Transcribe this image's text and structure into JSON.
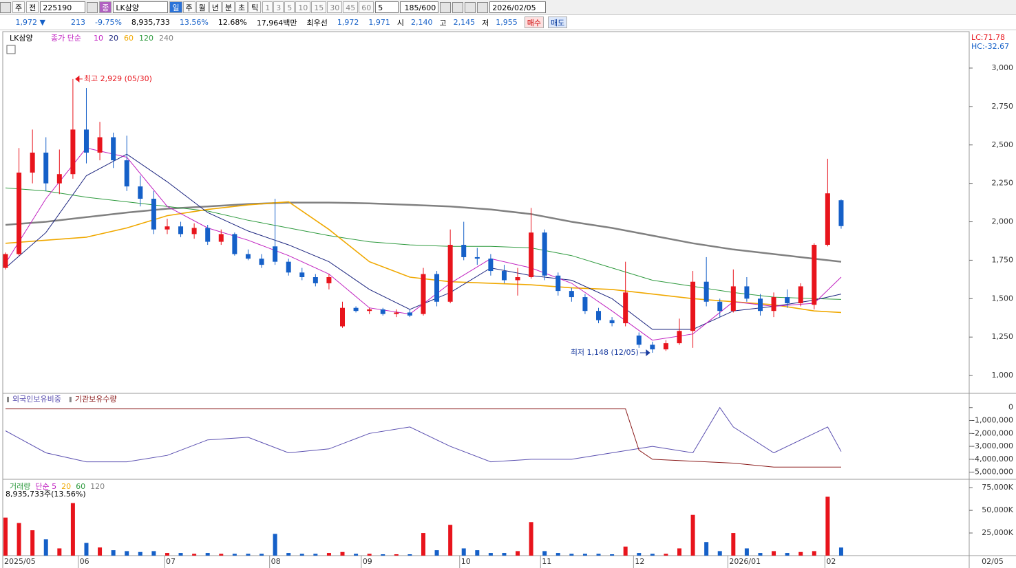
{
  "toolbar": {
    "period": "주",
    "prev": "전",
    "code": "225190",
    "kind": "종",
    "name": "LK삼양",
    "units": [
      "일",
      "주",
      "월",
      "년",
      "분",
      "초",
      "틱"
    ],
    "nums": [
      "1",
      "3",
      "5",
      "10",
      "15",
      "30",
      "45",
      "60"
    ],
    "step": "5",
    "count": "185/600",
    "date": "2026/02/05"
  },
  "info": {
    "price": "1,972 ▼",
    "change": "213",
    "rate": "-9.75%",
    "volume": "8,935,733",
    "turnover": "13.56%",
    "ratio": "12.68%",
    "amount": "17,964백만",
    "best": "최우선",
    "ask": "1,972",
    "bid": "1,971",
    "open_label": "시",
    "open": "2,140",
    "high_label": "고",
    "high": "2,145",
    "low_label": "저",
    "low": "1,955",
    "buy": "매수",
    "sell": "매도"
  },
  "chart_data": [
    {
      "type": "candlestick",
      "legend_title": "LK삼양",
      "ma_label": "종가 단순",
      "lc": "LC:71.78",
      "hc": "HC:-32.67",
      "open": [
        1700,
        1790,
        2320,
        2450,
        2250,
        2310,
        2600,
        2450,
        2550,
        2400,
        2230,
        2150,
        1950,
        1970,
        1920,
        1960,
        1870,
        1920,
        1790,
        1760,
        1840,
        1740,
        1670,
        1640,
        1600,
        1320,
        1440,
        1420,
        1430,
        1400,
        1410,
        1400,
        1660,
        1480,
        1850,
        1770,
        1760,
        1680,
        1620,
        1640,
        1930,
        1650,
        1550,
        1510,
        1420,
        1360,
        1340,
        1260,
        1200,
        1170,
        1210,
        1290,
        1610,
        1480,
        1420,
        1580,
        1500,
        1420,
        1510,
        1470,
        1460,
        1850,
        2140
      ],
      "high": [
        1800,
        2480,
        2600,
        2550,
        2470,
        2929,
        2870,
        2650,
        2580,
        2560,
        2300,
        2200,
        2020,
        2000,
        1990,
        1980,
        1950,
        1930,
        1820,
        1790,
        2150,
        1760,
        1700,
        1660,
        1660,
        1480,
        1450,
        1440,
        1440,
        1430,
        1430,
        1700,
        1680,
        1950,
        2000,
        1830,
        1790,
        1720,
        1700,
        2090,
        1950,
        1670,
        1570,
        1530,
        1440,
        1380,
        1740,
        1280,
        1220,
        1230,
        1370,
        1680,
        1770,
        1500,
        1690,
        1640,
        1530,
        1540,
        1560,
        1600,
        1860,
        2410,
        2145
      ],
      "low": [
        1690,
        1780,
        2250,
        2200,
        2180,
        2280,
        2380,
        2400,
        2350,
        2200,
        2100,
        1920,
        1920,
        1900,
        1890,
        1850,
        1850,
        1780,
        1750,
        1700,
        1720,
        1650,
        1620,
        1580,
        1560,
        1310,
        1410,
        1400,
        1390,
        1380,
        1380,
        1390,
        1450,
        1470,
        1750,
        1720,
        1650,
        1600,
        1520,
        1630,
        1620,
        1520,
        1480,
        1400,
        1340,
        1320,
        1320,
        1180,
        1148,
        1160,
        1200,
        1180,
        1450,
        1380,
        1410,
        1480,
        1390,
        1380,
        1440,
        1450,
        1430,
        1840,
        1955
      ],
      "close": [
        1790,
        2320,
        2450,
        2250,
        2310,
        2600,
        2450,
        2550,
        2400,
        2230,
        2150,
        1950,
        1970,
        1920,
        1960,
        1870,
        1920,
        1790,
        1760,
        1720,
        1740,
        1670,
        1640,
        1600,
        1640,
        1440,
        1420,
        1430,
        1400,
        1410,
        1390,
        1660,
        1480,
        1850,
        1770,
        1760,
        1680,
        1620,
        1640,
        1930,
        1650,
        1550,
        1510,
        1420,
        1360,
        1340,
        1540,
        1200,
        1170,
        1210,
        1290,
        1610,
        1480,
        1420,
        1580,
        1500,
        1420,
        1510,
        1470,
        1580,
        1850,
        2185,
        1972
      ],
      "up_color": "#e8141c",
      "down_color": "#1560c8",
      "series": [
        {
          "name": "10",
          "color": "#c020c0",
          "x": [
            0,
            3,
            6,
            9,
            12,
            15,
            18,
            21,
            24,
            27,
            30,
            33,
            36,
            39,
            42,
            45,
            48,
            51,
            54,
            57,
            60,
            62
          ],
          "values": [
            1730,
            2150,
            2480,
            2420,
            2100,
            1960,
            1880,
            1780,
            1660,
            1440,
            1400,
            1600,
            1760,
            1700,
            1600,
            1420,
            1230,
            1270,
            1480,
            1450,
            1470,
            1640
          ]
        },
        {
          "name": "20",
          "color": "#1a237e",
          "x": [
            0,
            3,
            6,
            9,
            12,
            15,
            18,
            21,
            24,
            27,
            30,
            33,
            36,
            39,
            42,
            45,
            48,
            51,
            54,
            57,
            60,
            62
          ],
          "values": [
            1700,
            1930,
            2300,
            2440,
            2260,
            2060,
            1940,
            1850,
            1740,
            1560,
            1430,
            1540,
            1700,
            1650,
            1620,
            1500,
            1300,
            1300,
            1420,
            1450,
            1490,
            1530
          ]
        },
        {
          "name": "60",
          "color": "#f0a800",
          "x": [
            0,
            3,
            6,
            9,
            12,
            15,
            18,
            21,
            24,
            27,
            30,
            33,
            36,
            39,
            42,
            45,
            48,
            51,
            54,
            57,
            60,
            62
          ],
          "values": [
            1860,
            1880,
            1900,
            1960,
            2040,
            2080,
            2110,
            2130,
            1950,
            1740,
            1640,
            1610,
            1600,
            1590,
            1570,
            1560,
            1530,
            1500,
            1480,
            1460,
            1420,
            1410
          ]
        },
        {
          "name": "120",
          "color": "#2e9a3e",
          "x": [
            0,
            3,
            6,
            9,
            12,
            15,
            18,
            21,
            24,
            27,
            30,
            33,
            36,
            39,
            42,
            45,
            48,
            51,
            54,
            57,
            60,
            62
          ],
          "values": [
            2220,
            2200,
            2160,
            2130,
            2100,
            2070,
            2010,
            1960,
            1910,
            1870,
            1850,
            1840,
            1840,
            1830,
            1780,
            1700,
            1620,
            1580,
            1540,
            1510,
            1500,
            1495
          ]
        },
        {
          "name": "240",
          "color": "#808080",
          "x": [
            0,
            3,
            6,
            9,
            12,
            15,
            18,
            21,
            24,
            27,
            30,
            33,
            36,
            39,
            42,
            45,
            48,
            51,
            54,
            57,
            60,
            62
          ],
          "values": [
            1980,
            2000,
            2030,
            2060,
            2085,
            2100,
            2115,
            2125,
            2125,
            2120,
            2110,
            2100,
            2080,
            2050,
            2000,
            1960,
            1910,
            1860,
            1820,
            1790,
            1760,
            1740
          ]
        }
      ],
      "annotations": [
        {
          "text": "최고 2,929 (05/30)",
          "x": 5,
          "y": 2929,
          "color": "#e8141c",
          "side": "right"
        },
        {
          "text": "최저 1,148 (12/05)",
          "x": 48,
          "y": 1148,
          "color": "#1a3ca0",
          "side": "left"
        }
      ],
      "ylim": [
        884,
        3237
      ],
      "yticks": [
        {
          "value": 1000,
          "label": "1,000"
        },
        {
          "value": 1250,
          "label": "1,250"
        },
        {
          "value": 1500,
          "label": "1,500"
        },
        {
          "value": 1750,
          "label": "1,750"
        },
        {
          "value": 2000,
          "label": "2,000"
        },
        {
          "value": 2250,
          "label": "2,250"
        },
        {
          "value": 2500,
          "label": "2,500"
        },
        {
          "value": 2750,
          "label": "2,750"
        },
        {
          "value": 3000,
          "label": "3,000"
        }
      ]
    },
    {
      "type": "line",
      "series": [
        {
          "name": "외국인보유비중",
          "color": "#5a4fb0",
          "x": [
            0,
            3,
            6,
            9,
            12,
            15,
            18,
            21,
            24,
            27,
            30,
            33,
            36,
            39,
            42,
            45,
            48,
            51,
            53,
            54,
            57,
            60,
            61,
            62
          ],
          "values": [
            -1800000,
            -3500000,
            -4200000,
            -4200000,
            -3700000,
            -2500000,
            -2300000,
            -3500000,
            -3200000,
            -2000000,
            -1500000,
            -3000000,
            -4200000,
            -4000000,
            -4000000,
            -3500000,
            -3000000,
            -3500000,
            0,
            -1500000,
            -3500000,
            -2000000,
            -1500000,
            -3400000
          ]
        },
        {
          "name": "기관보유수량",
          "color": "#8a1a1a",
          "x": [
            0,
            46,
            47,
            48,
            54,
            57,
            62
          ],
          "values": [
            -100000,
            -100000,
            -3300000,
            -4000000,
            -4300000,
            -4600000,
            -4600000
          ]
        }
      ],
      "ylim": [
        -5550000,
        1050000
      ],
      "yticks": [
        0,
        {
          "value": -1000000,
          "label": "-1,000,000"
        },
        {
          "value": -2000000,
          "label": "-2,000,000"
        },
        {
          "value": -3000000,
          "label": "-3,000,000"
        },
        {
          "value": -4000000,
          "label": "-4,000,000"
        },
        {
          "value": -5000000,
          "label": "-5,000,000"
        }
      ]
    },
    {
      "type": "volume",
      "legend_title": "거래량",
      "ma_label": "단순 5",
      "ma_names": [
        "20",
        "60",
        "120"
      ],
      "ma_colors": [
        "#f0a800",
        "#2e9a3e",
        "#808080"
      ],
      "ma_label_color": "#c020c0",
      "note": "8,935,733주(13.56%)",
      "cursor_label": "02/05",
      "values": [
        42000,
        36000,
        28000,
        18000,
        8000,
        58000,
        14000,
        9000,
        6000,
        5000,
        4000,
        5000,
        3000,
        3000,
        2000,
        3000,
        2000,
        2000,
        2000,
        2000,
        24000,
        3000,
        2000,
        2000,
        3000,
        4000,
        2000,
        2000,
        1500,
        1500,
        1500,
        25000,
        6000,
        34000,
        8000,
        6000,
        3000,
        3000,
        5000,
        37000,
        5000,
        3000,
        2000,
        2000,
        2000,
        1500,
        10000,
        3000,
        2000,
        2000,
        8000,
        45000,
        15000,
        5000,
        25000,
        8000,
        3000,
        5000,
        3000,
        4000,
        5000,
        65000,
        8935
      ],
      "ylim": [
        0,
        83500
      ],
      "yticks": [
        {
          "value": 25000,
          "label": "25,000K"
        },
        {
          "value": 50000,
          "label": "50,000K"
        },
        {
          "value": 75000,
          "label": "75,000K"
        }
      ],
      "xticks": [
        {
          "value": 0,
          "label": "2025/05"
        },
        {
          "value": 5.6,
          "label": "06"
        },
        {
          "value": 12,
          "label": "07"
        },
        {
          "value": 19.8,
          "label": "08"
        },
        {
          "value": 26.6,
          "label": "09"
        },
        {
          "value": 33.9,
          "label": "10"
        },
        {
          "value": 39.9,
          "label": "11"
        },
        {
          "value": 46.8,
          "label": "12"
        },
        {
          "value": 53.8,
          "label": "2026/01"
        },
        {
          "value": 61,
          "label": "02"
        }
      ]
    }
  ]
}
